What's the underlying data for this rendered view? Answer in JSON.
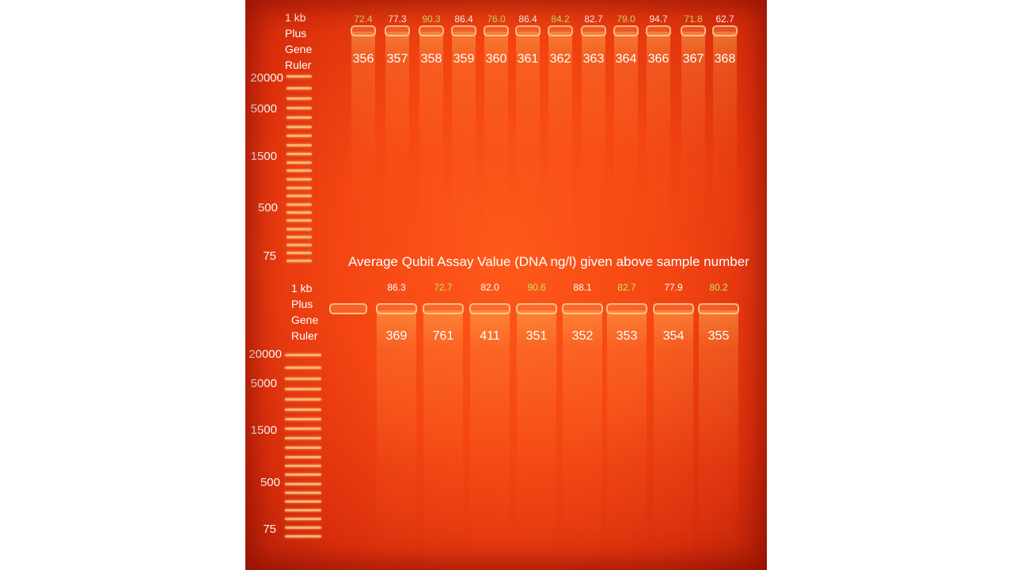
{
  "ladder_label_lines": [
    "1 kb",
    "Plus",
    "Gene",
    "Ruler"
  ],
  "caption": "Average Qubit Assay Value (DNA ng/l) given above sample number",
  "colors": {
    "qubit_green": "#c6e36a",
    "qubit_white": "#ffffff"
  },
  "top_gel": {
    "size_markers": [
      "20000",
      "5000",
      "1500",
      "500",
      "75"
    ],
    "lanes": [
      {
        "qubit": "72.4",
        "sample": "356",
        "qubit_color": "green"
      },
      {
        "qubit": "77.3",
        "sample": "357",
        "qubit_color": "white"
      },
      {
        "qubit": "90.3",
        "sample": "358",
        "qubit_color": "green"
      },
      {
        "qubit": "86.4",
        "sample": "359",
        "qubit_color": "white"
      },
      {
        "qubit": "76.0",
        "sample": "360",
        "qubit_color": "green"
      },
      {
        "qubit": "86.4",
        "sample": "361",
        "qubit_color": "white"
      },
      {
        "qubit": "84.2",
        "sample": "362",
        "qubit_color": "green"
      },
      {
        "qubit": "82.7",
        "sample": "363",
        "qubit_color": "white"
      },
      {
        "qubit": "79.0",
        "sample": "364",
        "qubit_color": "green"
      },
      {
        "qubit": "94.7",
        "sample": "366",
        "qubit_color": "white"
      },
      {
        "qubit": "71.8",
        "sample": "367",
        "qubit_color": "green"
      },
      {
        "qubit": "62.7",
        "sample": "368",
        "qubit_color": "white"
      }
    ]
  },
  "bottom_gel": {
    "size_markers": [
      "20000",
      "5000",
      "1500",
      "500",
      "75"
    ],
    "lanes": [
      {
        "qubit": "86.3",
        "sample": "369",
        "qubit_color": "white"
      },
      {
        "qubit": "72.7",
        "sample": "761",
        "qubit_color": "green"
      },
      {
        "qubit": "82.0",
        "sample": "411",
        "qubit_color": "white"
      },
      {
        "qubit": "90.6",
        "sample": "351",
        "qubit_color": "green"
      },
      {
        "qubit": "88.1",
        "sample": "352",
        "qubit_color": "white"
      },
      {
        "qubit": "82.7",
        "sample": "353",
        "qubit_color": "green"
      },
      {
        "qubit": "77.9",
        "sample": "354",
        "qubit_color": "white"
      },
      {
        "qubit": "80.2",
        "sample": "355",
        "qubit_color": "green"
      }
    ]
  }
}
